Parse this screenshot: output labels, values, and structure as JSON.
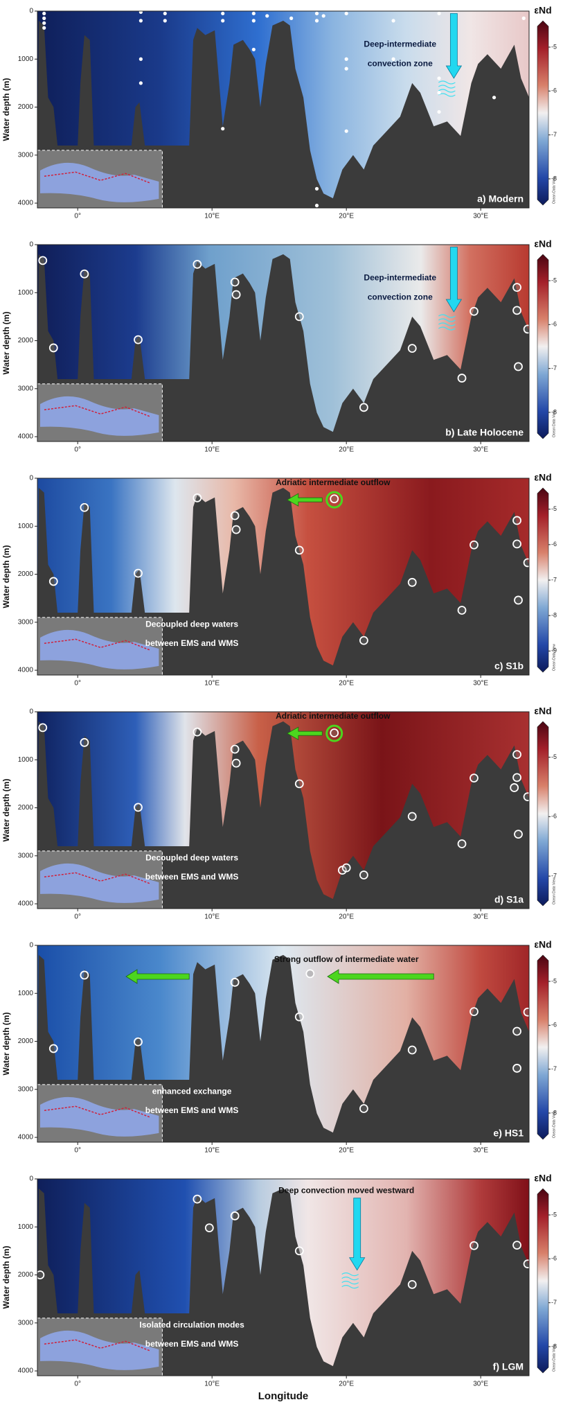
{
  "chart_data": [
    {
      "type": "scatter",
      "title": "a) Modern",
      "y_label": "Water depth (m)",
      "xlim": [
        -3,
        33.6
      ],
      "ylim": [
        0,
        4100
      ],
      "xticks": [
        {
          "value": 0,
          "label": "0°"
        },
        {
          "value": 10,
          "label": "10°E"
        },
        {
          "value": 20,
          "label": "20°E"
        },
        {
          "value": 30,
          "label": "30°E"
        }
      ],
      "yticks": [
        0,
        1000,
        2000,
        3000,
        4000
      ],
      "marker": "filled",
      "annotations": [
        "Deep-intermediate",
        "convection zone"
      ],
      "colorbar": {
        "label": "εNd",
        "lim": [
          -8.6,
          -4.4
        ],
        "ticks": [
          -5,
          -6,
          -7,
          -8
        ],
        "credit": "Ocean Data View"
      },
      "series": [
        {
          "color": "#ffffff",
          "x": [
            -2.5,
            -2.5,
            -2.5,
            -2.5,
            4.7,
            4.7,
            4.7,
            4.7,
            6.5,
            6.5,
            10.8,
            10.8,
            10.8,
            13.1,
            13.1,
            13.1,
            14.1,
            15.9,
            17.8,
            17.8,
            17.8,
            17.8,
            18.3,
            20,
            20,
            20,
            20,
            23.5,
            23.5,
            26.9,
            26.9,
            26.9,
            26.9,
            31,
            33.2
          ],
          "y": [
            50,
            150,
            250,
            350,
            20,
            200,
            1000,
            1500,
            50,
            200,
            50,
            200,
            2450,
            50,
            200,
            800,
            100,
            150,
            50,
            200,
            3700,
            4050,
            100,
            50,
            1000,
            1200,
            2500,
            200,
            1000,
            50,
            1400,
            1700,
            2100,
            1800,
            150
          ]
        }
      ]
    },
    {
      "type": "scatter",
      "title": "b) Late Holocene",
      "y_label": "Water depth (m)",
      "xlim": [
        -3,
        33.6
      ],
      "ylim": [
        0,
        4100
      ],
      "xticks": [
        {
          "value": 0,
          "label": "0°"
        },
        {
          "value": 10,
          "label": "10°E"
        },
        {
          "value": 20,
          "label": "20°E"
        },
        {
          "value": 30,
          "label": "30°E"
        }
      ],
      "yticks": [
        0,
        1000,
        2000,
        3000,
        4000
      ],
      "marker": "open",
      "annotations": [
        "Deep-intermediate",
        "convection zone"
      ],
      "colorbar": {
        "label": "εNd",
        "lim": [
          -8.6,
          -4.4
        ],
        "ticks": [
          -5,
          -6,
          -7,
          -8
        ],
        "credit": "Ocean Data View"
      },
      "series": [
        {
          "color": "#ffffff",
          "x": [
            -2.6,
            0.5,
            -1.8,
            4.5,
            8.9,
            11.7,
            11.8,
            16.5,
            21.3,
            24.9,
            28.6,
            29.5,
            32.7,
            32.7,
            32.8,
            33.5
          ],
          "y": [
            330,
            610,
            2150,
            1980,
            410,
            780,
            1040,
            1500,
            3390,
            2160,
            2780,
            1390,
            890,
            1370,
            2540,
            1760
          ]
        }
      ]
    },
    {
      "type": "scatter",
      "title": "c) S1b",
      "y_label": "Water depth (m)",
      "xlim": [
        -3,
        33.6
      ],
      "ylim": [
        0,
        4100
      ],
      "xticks": [
        {
          "value": 0,
          "label": "0°"
        },
        {
          "value": 10,
          "label": "10°E"
        },
        {
          "value": 20,
          "label": "20°E"
        },
        {
          "value": 30,
          "label": "30°E"
        }
      ],
      "yticks": [
        0,
        1000,
        2000,
        3000,
        4000
      ],
      "marker": "open",
      "annotations": [
        "Adriatic intermediate outflow",
        "Decoupled deep waters",
        "between EMS and WMS"
      ],
      "colorbar": {
        "label": "εNd",
        "lim": [
          -9.6,
          -4.4
        ],
        "ticks": [
          -5,
          -6,
          -7,
          -8,
          -9
        ],
        "credit": "Ocean Data View"
      },
      "series": [
        {
          "color": "#ffffff",
          "x": [
            -1.8,
            0.5,
            4.5,
            8.9,
            11.7,
            11.8,
            16.5,
            19.1,
            21.3,
            24.9,
            28.6,
            29.5,
            32.7,
            32.7,
            32.8,
            33.5
          ],
          "y": [
            2150,
            610,
            1980,
            410,
            780,
            1070,
            1500,
            430,
            3380,
            2170,
            2750,
            1390,
            880,
            1370,
            2540,
            1760
          ]
        }
      ]
    },
    {
      "type": "scatter",
      "title": "d) S1a",
      "y_label": "Water depth (m)",
      "xlim": [
        -3,
        33.6
      ],
      "ylim": [
        0,
        4100
      ],
      "xticks": [
        {
          "value": 0,
          "label": "0°"
        },
        {
          "value": 10,
          "label": "10°E"
        },
        {
          "value": 20,
          "label": "20°E"
        },
        {
          "value": 30,
          "label": "30°E"
        }
      ],
      "yticks": [
        0,
        1000,
        2000,
        3000,
        4000
      ],
      "marker": "open",
      "annotations": [
        "Adriatic intermediate outflow",
        "Decoupled deep waters",
        "between EMS and WMS"
      ],
      "colorbar": {
        "label": "εNd",
        "lim": [
          -7.5,
          -4.4
        ],
        "ticks": [
          -5,
          -6,
          -7
        ],
        "credit": "Ocean Data View"
      },
      "series": [
        {
          "color": "#ffffff",
          "x": [
            -2.6,
            0.5,
            4.5,
            8.9,
            11.7,
            11.8,
            16.5,
            19.1,
            19.7,
            20,
            21.3,
            24.9,
            28.6,
            29.5,
            32.7,
            32.7,
            32.5,
            32.8,
            33.5
          ],
          "y": [
            330,
            640,
            1990,
            420,
            780,
            1070,
            1500,
            440,
            3300,
            3250,
            3400,
            2180,
            2750,
            1380,
            890,
            1370,
            1580,
            2550,
            1770
          ]
        }
      ]
    },
    {
      "type": "scatter",
      "title": "e) HS1",
      "y_label": "Water depth (m)",
      "xlim": [
        -3,
        33.6
      ],
      "ylim": [
        0,
        4100
      ],
      "xticks": [
        {
          "value": 0,
          "label": "0°"
        },
        {
          "value": 10,
          "label": "10°E"
        },
        {
          "value": 20,
          "label": "20°E"
        },
        {
          "value": 30,
          "label": "30°E"
        }
      ],
      "yticks": [
        0,
        1000,
        2000,
        3000,
        4000
      ],
      "marker": "open",
      "annotations": [
        "Strong outflow of intermediate water",
        "enhanced exchange",
        "between EMS and WMS"
      ],
      "colorbar": {
        "label": "εNd",
        "lim": [
          -8.6,
          -4.4
        ],
        "ticks": [
          -5,
          -6,
          -7,
          -8
        ],
        "credit": "Ocean Data View"
      },
      "series": [
        {
          "color": "#ffffff",
          "x": [
            -1.8,
            0.5,
            4.5,
            11.7,
            16.5,
            17.3,
            21.3,
            24.9,
            29.5,
            32.7,
            32.7,
            33.5
          ],
          "y": [
            2150,
            620,
            2010,
            770,
            1490,
            590,
            3400,
            2180,
            1380,
            1790,
            2560,
            1390
          ]
        }
      ]
    },
    {
      "type": "scatter",
      "title": "f) LGM",
      "y_label": "Water depth (m)",
      "x_label": "Longitude",
      "xlim": [
        -3,
        33.6
      ],
      "ylim": [
        0,
        4100
      ],
      "xticks": [
        {
          "value": 0,
          "label": "0°"
        },
        {
          "value": 10,
          "label": "10°E"
        },
        {
          "value": 20,
          "label": "20°E"
        },
        {
          "value": 30,
          "label": "30°E"
        }
      ],
      "yticks": [
        0,
        1000,
        2000,
        3000,
        4000
      ],
      "marker": "open",
      "annotations": [
        "Deep convection moved westward",
        "Isolated circulation modes",
        "between EMS and WMS"
      ],
      "colorbar": {
        "label": "εNd",
        "lim": [
          -8.6,
          -4.4
        ],
        "ticks": [
          -5,
          -6,
          -7,
          -8
        ],
        "credit": "Ocean Data View"
      },
      "series": [
        {
          "color": "#ffffff",
          "x": [
            -2.8,
            8.9,
            9.8,
            11.7,
            16.5,
            24.9,
            29.5,
            32.7,
            33.5
          ],
          "y": [
            2000,
            420,
            1020,
            770,
            1500,
            2200,
            1390,
            1380,
            1770
          ]
        }
      ]
    }
  ]
}
